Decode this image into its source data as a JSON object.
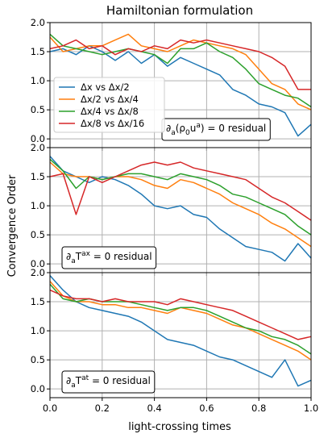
{
  "chart_data": {
    "type": "line",
    "title": "Hamiltonian formulation",
    "xlabel": "light-crossing times",
    "ylabel": "Convergence Order",
    "xlim": [
      0.0,
      1.0
    ],
    "ylim": [
      -0.15,
      2.0
    ],
    "xticks": [
      "0.0",
      "0.2",
      "0.4",
      "0.6",
      "0.8",
      "1.0"
    ],
    "yticks": [
      "0.0",
      "0.5",
      "1.0",
      "1.5",
      "2.0"
    ],
    "grid": true,
    "legend": {
      "placement": "lower-left (top panel)"
    },
    "series_meta": [
      {
        "name": "Δx vs Δx/2",
        "color": "#1f77b4"
      },
      {
        "name": "Δx/2 vs Δx/4",
        "color": "#ff7f0e"
      },
      {
        "name": "Δx/4 vs Δx/8",
        "color": "#2ca02c"
      },
      {
        "name": "Δx/8 vs Δx/16",
        "color": "#d62728"
      }
    ],
    "panels": [
      {
        "annotation": "∂a(ρ0ua) = 0 residual",
        "x": [
          0,
          0.05,
          0.1,
          0.15,
          0.2,
          0.25,
          0.3,
          0.35,
          0.4,
          0.45,
          0.5,
          0.55,
          0.6,
          0.65,
          0.7,
          0.75,
          0.8,
          0.85,
          0.9,
          0.95,
          1.0
        ],
        "series": [
          {
            "name": "Δx vs Δx/2",
            "values": [
              1.5,
              1.55,
              1.45,
              1.6,
              1.5,
              1.35,
              1.5,
              1.3,
              1.45,
              1.25,
              1.4,
              1.3,
              1.2,
              1.1,
              0.85,
              0.75,
              0.6,
              0.55,
              0.45,
              0.05,
              0.25
            ]
          },
          {
            "name": "Δx/2 vs Δx/4",
            "values": [
              1.75,
              1.5,
              1.55,
              1.6,
              1.6,
              1.7,
              1.8,
              1.6,
              1.55,
              1.5,
              1.6,
              1.7,
              1.65,
              1.6,
              1.55,
              1.45,
              1.2,
              0.95,
              0.85,
              0.6,
              0.5
            ]
          },
          {
            "name": "Δx/4 vs Δx/8",
            "values": [
              1.8,
              1.6,
              1.55,
              1.5,
              1.45,
              1.5,
              1.55,
              1.5,
              1.45,
              1.3,
              1.55,
              1.55,
              1.65,
              1.5,
              1.4,
              1.2,
              0.95,
              0.85,
              0.75,
              0.7,
              0.55
            ]
          },
          {
            "name": "Δx/8 vs Δx/16",
            "values": [
              1.55,
              1.6,
              1.7,
              1.55,
              1.6,
              1.45,
              1.55,
              1.5,
              1.6,
              1.55,
              1.7,
              1.65,
              1.7,
              1.65,
              1.6,
              1.55,
              1.5,
              1.4,
              1.25,
              0.85,
              0.85
            ]
          }
        ]
      },
      {
        "annotation": "∂aTax = 0 residual",
        "x": [
          0,
          0.05,
          0.1,
          0.15,
          0.2,
          0.25,
          0.3,
          0.35,
          0.4,
          0.45,
          0.5,
          0.55,
          0.6,
          0.65,
          0.7,
          0.75,
          0.8,
          0.85,
          0.9,
          0.95,
          1.0
        ],
        "series": [
          {
            "name": "Δx vs Δx/2",
            "values": [
              1.85,
              1.6,
              1.5,
              1.4,
              1.5,
              1.45,
              1.35,
              1.2,
              1.0,
              0.95,
              1.0,
              0.85,
              0.8,
              0.6,
              0.45,
              0.3,
              0.25,
              0.2,
              0.05,
              0.35,
              0.1
            ]
          },
          {
            "name": "Δx/2 vs Δx/4",
            "values": [
              1.75,
              1.55,
              1.5,
              1.5,
              1.45,
              1.5,
              1.5,
              1.45,
              1.35,
              1.3,
              1.45,
              1.4,
              1.3,
              1.2,
              1.05,
              0.95,
              0.85,
              0.7,
              0.6,
              0.45,
              0.3
            ]
          },
          {
            "name": "Δx/4 vs Δx/8",
            "values": [
              1.8,
              1.6,
              1.3,
              1.5,
              1.45,
              1.5,
              1.55,
              1.55,
              1.5,
              1.45,
              1.55,
              1.5,
              1.45,
              1.35,
              1.2,
              1.15,
              1.05,
              0.95,
              0.85,
              0.65,
              0.5
            ]
          },
          {
            "name": "Δx/8 vs Δx/16",
            "values": [
              1.5,
              1.55,
              0.85,
              1.5,
              1.4,
              1.5,
              1.6,
              1.7,
              1.75,
              1.7,
              1.75,
              1.65,
              1.6,
              1.55,
              1.5,
              1.45,
              1.3,
              1.15,
              1.05,
              0.9,
              0.75
            ]
          }
        ]
      },
      {
        "annotation": "∂aTat = 0 residual",
        "x": [
          0,
          0.05,
          0.1,
          0.15,
          0.2,
          0.25,
          0.3,
          0.35,
          0.4,
          0.45,
          0.5,
          0.55,
          0.6,
          0.65,
          0.7,
          0.75,
          0.8,
          0.85,
          0.9,
          0.95,
          1.0
        ],
        "series": [
          {
            "name": "Δx vs Δx/2",
            "values": [
              1.95,
              1.7,
              1.5,
              1.4,
              1.35,
              1.3,
              1.25,
              1.15,
              1.0,
              0.85,
              0.8,
              0.75,
              0.65,
              0.55,
              0.5,
              0.4,
              0.3,
              0.2,
              0.5,
              0.05,
              0.15
            ]
          },
          {
            "name": "Δx/2 vs Δx/4",
            "values": [
              1.85,
              1.6,
              1.5,
              1.5,
              1.45,
              1.45,
              1.4,
              1.4,
              1.35,
              1.3,
              1.4,
              1.35,
              1.3,
              1.2,
              1.1,
              1.05,
              0.95,
              0.85,
              0.75,
              0.65,
              0.5
            ]
          },
          {
            "name": "Δx/4 vs Δx/8",
            "values": [
              1.8,
              1.55,
              1.5,
              1.55,
              1.5,
              1.5,
              1.5,
              1.45,
              1.4,
              1.35,
              1.4,
              1.4,
              1.35,
              1.25,
              1.15,
              1.05,
              1.0,
              0.9,
              0.85,
              0.75,
              0.6
            ]
          },
          {
            "name": "Δx/8 vs Δx/16",
            "values": [
              1.7,
              1.6,
              1.55,
              1.55,
              1.5,
              1.55,
              1.5,
              1.5,
              1.5,
              1.45,
              1.55,
              1.5,
              1.45,
              1.4,
              1.35,
              1.25,
              1.15,
              1.05,
              0.95,
              0.85,
              0.9
            ]
          }
        ]
      }
    ]
  },
  "annot_parts": [
    {
      "base": "∂",
      "sub": "a",
      "mid": "(ρ",
      "sub2": "0",
      "mid2": "u",
      "sup": "a",
      "tail": ") = 0 residual"
    },
    {
      "base": "∂",
      "sub": "a",
      "mid": "T",
      "sup": "ax",
      "tail": " = 0 residual"
    },
    {
      "base": "∂",
      "sub": "a",
      "mid": "T",
      "sup": "at",
      "tail": " = 0 residual"
    }
  ]
}
